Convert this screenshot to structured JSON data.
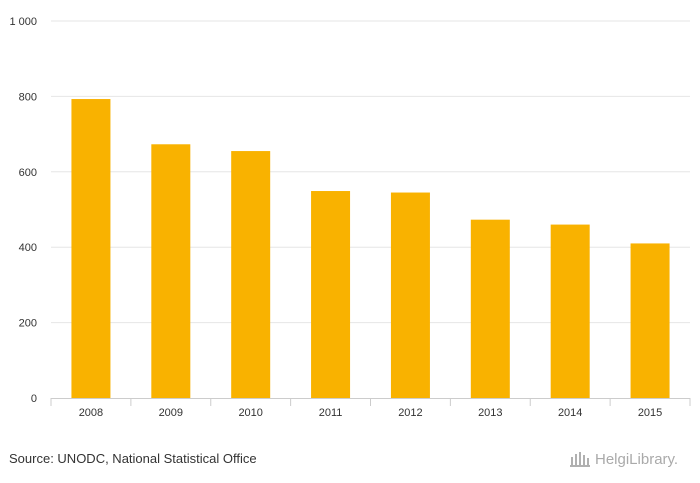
{
  "chart_data": {
    "type": "bar",
    "categories": [
      "2008",
      "2009",
      "2010",
      "2011",
      "2012",
      "2013",
      "2014",
      "2015"
    ],
    "values": [
      793,
      673,
      655,
      549,
      545,
      473,
      460,
      410
    ],
    "ylim": [
      0,
      1000
    ],
    "yticks": [
      0,
      200,
      400,
      600,
      800,
      1000
    ],
    "ytick_labels": [
      "0",
      "200",
      "400",
      "600",
      "800",
      "1 000"
    ],
    "bar_color": "#F9B200",
    "grid": true,
    "title": "",
    "xlabel": "",
    "ylabel": ""
  },
  "footer": {
    "source": "Source: UNODC, National Statistical Office",
    "logo_text": "HelgiLibrary."
  }
}
